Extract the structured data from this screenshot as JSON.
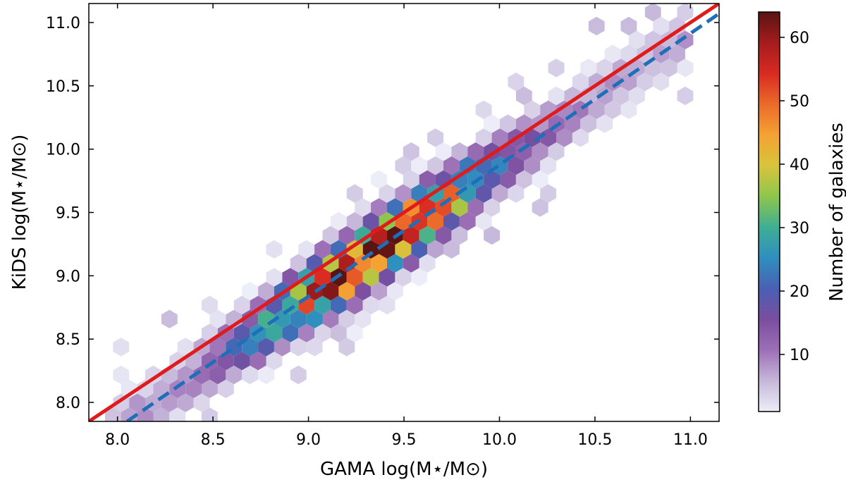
{
  "chart_data": {
    "type": "hexbin",
    "xlabel": "GAMA log(M⋆/M⊙)",
    "ylabel": "KiDS log(M⋆/M⊙)",
    "xlim": [
      7.85,
      11.15
    ],
    "ylim": [
      7.85,
      11.15
    ],
    "xticks": [
      "8.0",
      "8.5",
      "9.0",
      "9.5",
      "10.0",
      "10.5",
      "11.0"
    ],
    "yticks": [
      "8.0",
      "8.5",
      "9.0",
      "9.5",
      "10.0",
      "10.5",
      "11.0"
    ],
    "xtick_values": [
      8.0,
      8.5,
      9.0,
      9.5,
      10.0,
      10.5,
      11.0
    ],
    "ytick_values": [
      8.0,
      8.5,
      9.0,
      9.5,
      10.0,
      10.5,
      11.0
    ],
    "colorbar": {
      "label": "Number of galaxies",
      "range": [
        1,
        64
      ],
      "ticks": [
        "10",
        "20",
        "30",
        "40",
        "50",
        "60"
      ],
      "tick_values": [
        10,
        20,
        30,
        40,
        50,
        60
      ],
      "colormap": [
        "#eceef8",
        "#c6b7da",
        "#9d6fb6",
        "#7a4e9f",
        "#4a5fb3",
        "#2f8fbf",
        "#3fae94",
        "#8ec64c",
        "#d8c43c",
        "#f4a233",
        "#eb6a2a",
        "#d92a23",
        "#a51c1c",
        "#5a1414"
      ]
    },
    "lines": [
      {
        "name": "one-to-one",
        "style": "solid",
        "color": "#e01b1b",
        "x": [
          7.85,
          11.15
        ],
        "y": [
          7.85,
          11.15
        ]
      },
      {
        "name": "best-fit",
        "style": "dashed",
        "color": "#1f6fb8",
        "x": [
          8.05,
          11.15
        ],
        "y": [
          7.85,
          11.07
        ]
      }
    ],
    "density_model": {
      "description": "Hexbin counts of galaxies concentrated along the relation y = 1.035*x - 0.48",
      "fit_slope": 1.035,
      "fit_intercept": -0.48,
      "scatter": 0.15,
      "peak_count": 64,
      "peak_x": 9.35,
      "spread_x": 0.55
    }
  }
}
